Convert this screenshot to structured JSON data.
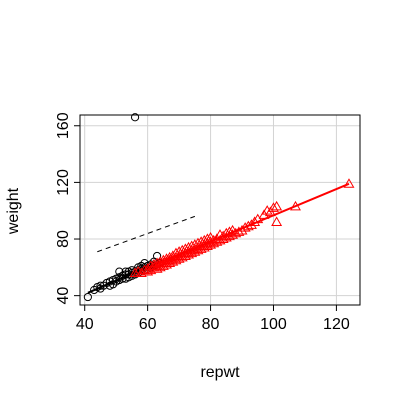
{
  "chart_data": {
    "type": "scatter",
    "xlabel": "repwt",
    "ylabel": "weight",
    "xlim": [
      38.5,
      127.5
    ],
    "ylim": [
      33.4,
      167.6
    ],
    "x_ticks": [
      40,
      60,
      80,
      100,
      120
    ],
    "x_tick_labels": [
      "40",
      "60",
      "80",
      "100",
      "120"
    ],
    "y_ticks": [
      40,
      80,
      120,
      160
    ],
    "y_tick_labels": [
      "40",
      "80",
      "120",
      "160"
    ],
    "grid": true,
    "colors": {
      "male": "#ff0000",
      "female": "#000000",
      "grid": "#d3d3d3"
    },
    "series": [
      {
        "marker": "circle",
        "color": "#000000",
        "points": [
          [
            41,
            39
          ],
          [
            43,
            44
          ],
          [
            44,
            46
          ],
          [
            45,
            45
          ],
          [
            45,
            47
          ],
          [
            46,
            47
          ],
          [
            47,
            49
          ],
          [
            48,
            47
          ],
          [
            48,
            50
          ],
          [
            49,
            48
          ],
          [
            49,
            51
          ],
          [
            50,
            50
          ],
          [
            50,
            52
          ],
          [
            51,
            51
          ],
          [
            51,
            53
          ],
          [
            51,
            57
          ],
          [
            52,
            52
          ],
          [
            52,
            54
          ],
          [
            53,
            52
          ],
          [
            53,
            55
          ],
          [
            53,
            57
          ],
          [
            54,
            53
          ],
          [
            54,
            55
          ],
          [
            54,
            57
          ],
          [
            55,
            54
          ],
          [
            55,
            56
          ],
          [
            55,
            58
          ],
          [
            56,
            55
          ],
          [
            56,
            57
          ],
          [
            56,
            166
          ],
          [
            57,
            56
          ],
          [
            57,
            58
          ],
          [
            57,
            60
          ],
          [
            58,
            57
          ],
          [
            58,
            59
          ],
          [
            58,
            61
          ],
          [
            59,
            58
          ],
          [
            59,
            60
          ],
          [
            59,
            63
          ],
          [
            60,
            59
          ],
          [
            60,
            61
          ],
          [
            61,
            60
          ],
          [
            61,
            62
          ],
          [
            62,
            61
          ],
          [
            62,
            64
          ],
          [
            63,
            62
          ],
          [
            63,
            68
          ],
          [
            64,
            63
          ]
        ],
        "fit_line": [
          [
            41,
            42
          ],
          [
            65,
            65
          ]
        ]
      },
      {
        "marker": "triangle",
        "color": "#ff0000",
        "points": [
          [
            56,
            56
          ],
          [
            57,
            57
          ],
          [
            58,
            56
          ],
          [
            59,
            58
          ],
          [
            60,
            57
          ],
          [
            60,
            59
          ],
          [
            61,
            58
          ],
          [
            61,
            61
          ],
          [
            62,
            60
          ],
          [
            62,
            62
          ],
          [
            63,
            59
          ],
          [
            63,
            61
          ],
          [
            63,
            63
          ],
          [
            64,
            60
          ],
          [
            64,
            62
          ],
          [
            64,
            64
          ],
          [
            65,
            61
          ],
          [
            65,
            63
          ],
          [
            65,
            65
          ],
          [
            66,
            62
          ],
          [
            66,
            64
          ],
          [
            66,
            66
          ],
          [
            67,
            63
          ],
          [
            67,
            65
          ],
          [
            67,
            67
          ],
          [
            68,
            64
          ],
          [
            68,
            66
          ],
          [
            68,
            68
          ],
          [
            69,
            65
          ],
          [
            69,
            67
          ],
          [
            69,
            70
          ],
          [
            70,
            66
          ],
          [
            70,
            68
          ],
          [
            70,
            71
          ],
          [
            71,
            67
          ],
          [
            71,
            69
          ],
          [
            71,
            72
          ],
          [
            72,
            68
          ],
          [
            72,
            70
          ],
          [
            72,
            73
          ],
          [
            73,
            69
          ],
          [
            73,
            71
          ],
          [
            73,
            74
          ],
          [
            74,
            70
          ],
          [
            74,
            72
          ],
          [
            74,
            75
          ],
          [
            75,
            71
          ],
          [
            75,
            73
          ],
          [
            75,
            76
          ],
          [
            76,
            72
          ],
          [
            76,
            74
          ],
          [
            76,
            77
          ],
          [
            77,
            73
          ],
          [
            77,
            75
          ],
          [
            77,
            78
          ],
          [
            78,
            74
          ],
          [
            78,
            76
          ],
          [
            78,
            79
          ],
          [
            79,
            75
          ],
          [
            79,
            77
          ],
          [
            79,
            80
          ],
          [
            80,
            76
          ],
          [
            80,
            78
          ],
          [
            80,
            81
          ],
          [
            81,
            77
          ],
          [
            81,
            79
          ],
          [
            82,
            78
          ],
          [
            82,
            80
          ],
          [
            83,
            79
          ],
          [
            83,
            83
          ],
          [
            84,
            80
          ],
          [
            84,
            82
          ],
          [
            85,
            81
          ],
          [
            85,
            84
          ],
          [
            86,
            82
          ],
          [
            86,
            85
          ],
          [
            87,
            83
          ],
          [
            87,
            86
          ],
          [
            88,
            84
          ],
          [
            89,
            85
          ],
          [
            90,
            86
          ],
          [
            91,
            88
          ],
          [
            92,
            89
          ],
          [
            93,
            90
          ],
          [
            94,
            92
          ],
          [
            95,
            94
          ],
          [
            97,
            97
          ],
          [
            98,
            100
          ],
          [
            99,
            99
          ],
          [
            100,
            102
          ],
          [
            101,
            92
          ],
          [
            101,
            103
          ],
          [
            107,
            103
          ],
          [
            124,
            119
          ]
        ],
        "fit_line": [
          [
            56,
            56
          ],
          [
            124,
            119
          ]
        ]
      }
    ],
    "reference_line": {
      "style": "dashed",
      "color": "#000000",
      "points": [
        [
          44,
          71
        ],
        [
          75,
          96
        ]
      ]
    }
  }
}
